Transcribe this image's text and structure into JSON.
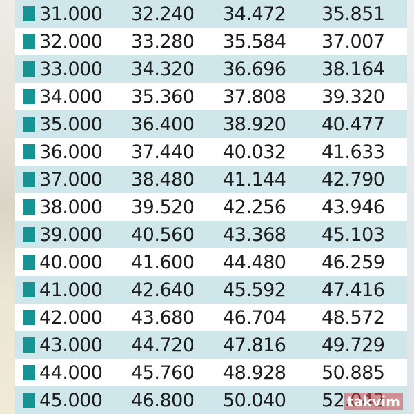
{
  "colors": {
    "marker": "#179393",
    "shaded_row": "#cfe6ea",
    "plain_row": "#ffffff",
    "text": "#1c1c1c"
  },
  "table": {
    "rows": [
      {
        "c0": "31.000",
        "c1": "32.240",
        "c2": "34.472",
        "c3": "35.851"
      },
      {
        "c0": "32.000",
        "c1": "33.280",
        "c2": "35.584",
        "c3": "37.007"
      },
      {
        "c0": "33.000",
        "c1": "34.320",
        "c2": "36.696",
        "c3": "38.164"
      },
      {
        "c0": "34.000",
        "c1": "35.360",
        "c2": "37.808",
        "c3": "39.320"
      },
      {
        "c0": "35.000",
        "c1": "36.400",
        "c2": "38.920",
        "c3": "40.477"
      },
      {
        "c0": "36.000",
        "c1": "37.440",
        "c2": "40.032",
        "c3": "41.633"
      },
      {
        "c0": "37.000",
        "c1": "38.480",
        "c2": "41.144",
        "c3": "42.790"
      },
      {
        "c0": "38.000",
        "c1": "39.520",
        "c2": "42.256",
        "c3": "43.946"
      },
      {
        "c0": "39.000",
        "c1": "40.560",
        "c2": "43.368",
        "c3": "45.103"
      },
      {
        "c0": "40.000",
        "c1": "41.600",
        "c2": "44.480",
        "c3": "46.259"
      },
      {
        "c0": "41.000",
        "c1": "42.640",
        "c2": "45.592",
        "c3": "47.416"
      },
      {
        "c0": "42.000",
        "c1": "43.680",
        "c2": "46.704",
        "c3": "48.572"
      },
      {
        "c0": "43.000",
        "c1": "44.720",
        "c2": "47.816",
        "c3": "49.729"
      },
      {
        "c0": "44.000",
        "c1": "45.760",
        "c2": "48.928",
        "c3": "50.885"
      },
      {
        "c0": "45.000",
        "c1": "46.800",
        "c2": "50.040",
        "c3": "52.042"
      }
    ]
  },
  "watermark": {
    "text": "takvim"
  }
}
